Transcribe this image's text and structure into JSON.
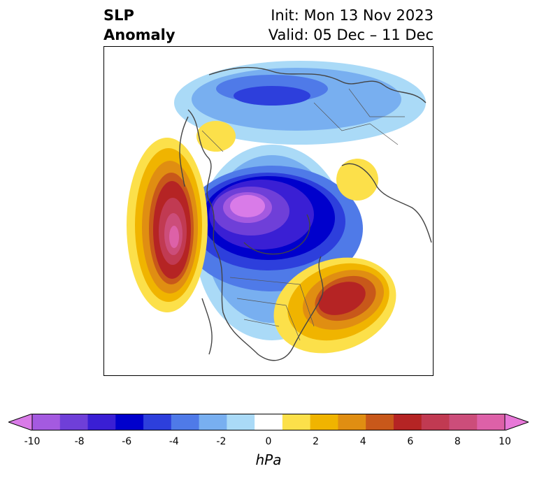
{
  "header": {
    "title_line1": "SLP",
    "title_line2": "Anomaly",
    "init_label": "Init: Mon 13 Nov 2023",
    "valid_label": "Valid: 05 Dec – 11 Dec"
  },
  "colorbar": {
    "ticks": [
      "-10",
      "-8",
      "-6",
      "-4",
      "-2",
      "0",
      "2",
      "4",
      "6",
      "8",
      "10"
    ],
    "unit": "hPa",
    "colors": [
      "#d97be8",
      "#a45ae0",
      "#6f3fd8",
      "#3a1fd4",
      "#0000cc",
      "#2d3fdc",
      "#4f7ae8",
      "#78aff0",
      "#aadaf7",
      "#ffffff",
      "#fce04a",
      "#f0b400",
      "#e08e12",
      "#c8581a",
      "#b52424",
      "#c13a52",
      "#cc4d7a",
      "#dd61a8",
      "#e878d8"
    ],
    "range": [
      -10,
      10
    ],
    "extend": "both"
  }
}
